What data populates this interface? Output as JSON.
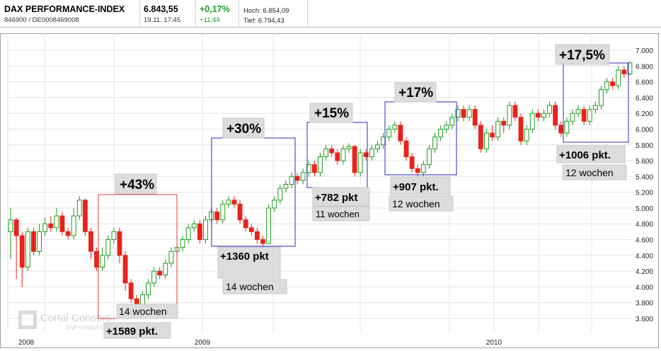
{
  "header": {
    "name": "DAX PERFORMANCE-INDEX",
    "wkn": "846900 / DE0008469008",
    "price": "6.843,55",
    "date": "19.11. 17:45",
    "change_pct": "+0,17%",
    "change_abs": "+11,44",
    "high": "Hoch: 6.854,09",
    "low": "Tief: 6.794,43"
  },
  "watermark": {
    "line1": "Cortal Consors",
    "line2": "BNP PARIBAS"
  },
  "colors": {
    "up": "#1a9a1a",
    "down": "#e8231b",
    "red_box": "#e23a3a",
    "blue_box": "#2b2bbf",
    "label_bg": "#dcdcdc"
  },
  "chart_data": {
    "type": "candlestick",
    "x_ticks": [
      "2008",
      "2009",
      "2010"
    ],
    "y_ticks": [
      "3.600",
      "3.800",
      "4.000",
      "4.200",
      "4.400",
      "4.600",
      "4.800",
      "5.000",
      "5.200",
      "5.400",
      "5.600",
      "5.800",
      "6.000",
      "6.200",
      "6.400",
      "6.600",
      "6.800",
      "7.000"
    ],
    "ylim": [
      3600,
      7000
    ],
    "grid": true,
    "n_candles": 112,
    "candles": [
      {
        "o": 4700,
        "c": 4850,
        "h": 5000,
        "l": 4350
      },
      {
        "o": 4850,
        "c": 4650,
        "h": 4880,
        "l": 4100
      },
      {
        "o": 4650,
        "c": 4250,
        "h": 4700,
        "l": 4000
      },
      {
        "o": 4250,
        "c": 4700,
        "h": 4750,
        "l": 4200
      },
      {
        "o": 4700,
        "c": 4450,
        "h": 4750,
        "l": 4400
      },
      {
        "o": 4450,
        "c": 4700,
        "h": 4800,
        "l": 4400
      },
      {
        "o": 4700,
        "c": 4800,
        "h": 4880,
        "l": 4650
      },
      {
        "o": 4800,
        "c": 4750,
        "h": 4900,
        "l": 4700
      },
      {
        "o": 4750,
        "c": 4900,
        "h": 5000,
        "l": 4700
      },
      {
        "o": 4900,
        "c": 4700,
        "h": 4950,
        "l": 4650
      },
      {
        "o": 4700,
        "c": 4650,
        "h": 4750,
        "l": 4600
      },
      {
        "o": 4650,
        "c": 4900,
        "h": 5000,
        "l": 4600
      },
      {
        "o": 4900,
        "c": 5100,
        "h": 5150,
        "l": 4850
      },
      {
        "o": 5100,
        "c": 4700,
        "h": 5120,
        "l": 4650
      },
      {
        "o": 4700,
        "c": 4450,
        "h": 4750,
        "l": 4350
      },
      {
        "o": 4450,
        "c": 4250,
        "h": 4500,
        "l": 4200
      },
      {
        "o": 4250,
        "c": 4400,
        "h": 4500,
        "l": 4200
      },
      {
        "o": 4400,
        "c": 4600,
        "h": 4650,
        "l": 4350
      },
      {
        "o": 4600,
        "c": 4700,
        "h": 4750,
        "l": 4550
      },
      {
        "o": 4700,
        "c": 4400,
        "h": 4750,
        "l": 4300
      },
      {
        "o": 4400,
        "c": 4050,
        "h": 4450,
        "l": 3950
      },
      {
        "o": 4050,
        "c": 3850,
        "h": 4100,
        "l": 3800
      },
      {
        "o": 3850,
        "c": 3700,
        "h": 3900,
        "l": 3650
      },
      {
        "o": 3700,
        "c": 3900,
        "h": 3950,
        "l": 3650
      },
      {
        "o": 3900,
        "c": 4050,
        "h": 4100,
        "l": 3850
      },
      {
        "o": 4050,
        "c": 4200,
        "h": 4250,
        "l": 4000
      },
      {
        "o": 4200,
        "c": 4150,
        "h": 4250,
        "l": 4100
      },
      {
        "o": 4150,
        "c": 4300,
        "h": 4350,
        "l": 4100
      },
      {
        "o": 4300,
        "c": 4450,
        "h": 4500,
        "l": 4250
      },
      {
        "o": 4450,
        "c": 4500,
        "h": 4550,
        "l": 4400
      },
      {
        "o": 4500,
        "c": 4600,
        "h": 4650,
        "l": 4450
      },
      {
        "o": 4600,
        "c": 4750,
        "h": 4800,
        "l": 4550
      },
      {
        "o": 4750,
        "c": 4800,
        "h": 4850,
        "l": 4700
      },
      {
        "o": 4800,
        "c": 4600,
        "h": 4850,
        "l": 4550
      },
      {
        "o": 4600,
        "c": 4850,
        "h": 4900,
        "l": 4550
      },
      {
        "o": 4850,
        "c": 4950,
        "h": 5000,
        "l": 4800
      },
      {
        "o": 4950,
        "c": 4850,
        "h": 5000,
        "l": 4800
      },
      {
        "o": 4850,
        "c": 5050,
        "h": 5100,
        "l": 4800
      },
      {
        "o": 5050,
        "c": 5100,
        "h": 5150,
        "l": 5000
      },
      {
        "o": 5100,
        "c": 5050,
        "h": 5150,
        "l": 5000
      },
      {
        "o": 5050,
        "c": 4850,
        "h": 5100,
        "l": 4800
      },
      {
        "o": 4850,
        "c": 4750,
        "h": 4900,
        "l": 4700
      },
      {
        "o": 4750,
        "c": 4700,
        "h": 4800,
        "l": 4650
      },
      {
        "o": 4700,
        "c": 4600,
        "h": 4750,
        "l": 4550
      },
      {
        "o": 4600,
        "c": 4550,
        "h": 4650,
        "l": 4500
      },
      {
        "o": 4550,
        "c": 5000,
        "h": 5050,
        "l": 4550
      },
      {
        "o": 5000,
        "c": 5100,
        "h": 5150,
        "l": 4950
      },
      {
        "o": 5100,
        "c": 5250,
        "h": 5300,
        "l": 5050
      },
      {
        "o": 5250,
        "c": 5300,
        "h": 5350,
        "l": 5200
      },
      {
        "o": 5300,
        "c": 5400,
        "h": 5450,
        "l": 5250
      },
      {
        "o": 5400,
        "c": 5350,
        "h": 5450,
        "l": 5300
      },
      {
        "o": 5350,
        "c": 5450,
        "h": 5500,
        "l": 5300
      },
      {
        "o": 5450,
        "c": 5550,
        "h": 5600,
        "l": 5400
      },
      {
        "o": 5550,
        "c": 5450,
        "h": 5600,
        "l": 5400
      },
      {
        "o": 5450,
        "c": 5650,
        "h": 5700,
        "l": 5400
      },
      {
        "o": 5650,
        "c": 5750,
        "h": 5800,
        "l": 5600
      },
      {
        "o": 5750,
        "c": 5700,
        "h": 5800,
        "l": 5650
      },
      {
        "o": 5700,
        "c": 5600,
        "h": 5750,
        "l": 5550
      },
      {
        "o": 5600,
        "c": 5750,
        "h": 5800,
        "l": 5550
      },
      {
        "o": 5750,
        "c": 5780,
        "h": 5820,
        "l": 5700
      },
      {
        "o": 5780,
        "c": 5450,
        "h": 5800,
        "l": 5400
      },
      {
        "o": 5450,
        "c": 5700,
        "h": 5750,
        "l": 5400
      },
      {
        "o": 5700,
        "c": 5650,
        "h": 5750,
        "l": 5600
      },
      {
        "o": 5650,
        "c": 5750,
        "h": 5800,
        "l": 5600
      },
      {
        "o": 5750,
        "c": 5800,
        "h": 5850,
        "l": 5700
      },
      {
        "o": 5800,
        "c": 5900,
        "h": 5950,
        "l": 5750
      },
      {
        "o": 5900,
        "c": 6000,
        "h": 6050,
        "l": 5850
      },
      {
        "o": 6000,
        "c": 6050,
        "h": 6100,
        "l": 5950
      },
      {
        "o": 6050,
        "c": 5850,
        "h": 6100,
        "l": 5800
      },
      {
        "o": 5850,
        "c": 5650,
        "h": 5900,
        "l": 5600
      },
      {
        "o": 5650,
        "c": 5500,
        "h": 5700,
        "l": 5450
      },
      {
        "o": 5500,
        "c": 5450,
        "h": 5550,
        "l": 5400
      },
      {
        "o": 5450,
        "c": 5550,
        "h": 5600,
        "l": 5400
      },
      {
        "o": 5550,
        "c": 5750,
        "h": 5800,
        "l": 5500
      },
      {
        "o": 5750,
        "c": 5900,
        "h": 5950,
        "l": 5700
      },
      {
        "o": 5900,
        "c": 6000,
        "h": 6050,
        "l": 5850
      },
      {
        "o": 6000,
        "c": 6050,
        "h": 6100,
        "l": 5950
      },
      {
        "o": 6050,
        "c": 6150,
        "h": 6200,
        "l": 6000
      },
      {
        "o": 6150,
        "c": 6250,
        "h": 6300,
        "l": 6100
      },
      {
        "o": 6250,
        "c": 6150,
        "h": 6300,
        "l": 6100
      },
      {
        "o": 6150,
        "c": 6250,
        "h": 6300,
        "l": 6100
      },
      {
        "o": 6250,
        "c": 6050,
        "h": 6300,
        "l": 6000
      },
      {
        "o": 6050,
        "c": 5750,
        "h": 6100,
        "l": 5700
      },
      {
        "o": 5750,
        "c": 5950,
        "h": 6000,
        "l": 5700
      },
      {
        "o": 5950,
        "c": 5900,
        "h": 6050,
        "l": 5850
      },
      {
        "o": 5900,
        "c": 6100,
        "h": 6150,
        "l": 5850
      },
      {
        "o": 6100,
        "c": 6050,
        "h": 6150,
        "l": 5950
      },
      {
        "o": 6050,
        "c": 6300,
        "h": 6350,
        "l": 6000
      },
      {
        "o": 6300,
        "c": 6150,
        "h": 6350,
        "l": 6100
      },
      {
        "o": 6150,
        "c": 5850,
        "h": 6200,
        "l": 5800
      },
      {
        "o": 5850,
        "c": 6000,
        "h": 6050,
        "l": 5800
      },
      {
        "o": 6000,
        "c": 6200,
        "h": 6250,
        "l": 5950
      },
      {
        "o": 6200,
        "c": 6150,
        "h": 6250,
        "l": 6100
      },
      {
        "o": 6150,
        "c": 6200,
        "h": 6250,
        "l": 6100
      },
      {
        "o": 6200,
        "c": 6300,
        "h": 6350,
        "l": 6150
      },
      {
        "o": 6300,
        "c": 6050,
        "h": 6350,
        "l": 6000
      },
      {
        "o": 6050,
        "c": 5950,
        "h": 6100,
        "l": 5900
      },
      {
        "o": 5950,
        "c": 6100,
        "h": 6150,
        "l": 5900
      },
      {
        "o": 6100,
        "c": 6200,
        "h": 6250,
        "l": 6050
      },
      {
        "o": 6200,
        "c": 6250,
        "h": 6300,
        "l": 6150
      },
      {
        "o": 6250,
        "c": 6100,
        "h": 6300,
        "l": 6050
      },
      {
        "o": 6100,
        "c": 6250,
        "h": 6300,
        "l": 6050
      },
      {
        "o": 6250,
        "c": 6300,
        "h": 6350,
        "l": 6200
      },
      {
        "o": 6300,
        "c": 6500,
        "h": 6550,
        "l": 6250
      },
      {
        "o": 6500,
        "c": 6600,
        "h": 6650,
        "l": 6450
      },
      {
        "o": 6600,
        "c": 6550,
        "h": 6650,
        "l": 6500
      },
      {
        "o": 6550,
        "c": 6750,
        "h": 6800,
        "l": 6500
      },
      {
        "o": 6750,
        "c": 6700,
        "h": 6800,
        "l": 6650
      },
      {
        "o": 6700,
        "c": 6840,
        "h": 6860,
        "l": 6680
      }
    ],
    "annotations": [
      {
        "text": "+43%",
        "sub1": "14 wochen",
        "sub2": "+1589 pkt.",
        "color": "red"
      },
      {
        "text": "+30%",
        "sub1": "+1360 pkt",
        "sub2": "14 wochen",
        "color": "blue"
      },
      {
        "text": "+15%",
        "sub1": "+782 pkt",
        "sub2": "11 wochen",
        "color": "blue"
      },
      {
        "text": "+17%",
        "sub1": "+907 pkt.",
        "sub2": "12 wochen",
        "color": "blue"
      },
      {
        "text": "+17,5%",
        "sub1": "+1006 pkt.",
        "sub2": "12 wochen",
        "color": "blue"
      }
    ]
  }
}
